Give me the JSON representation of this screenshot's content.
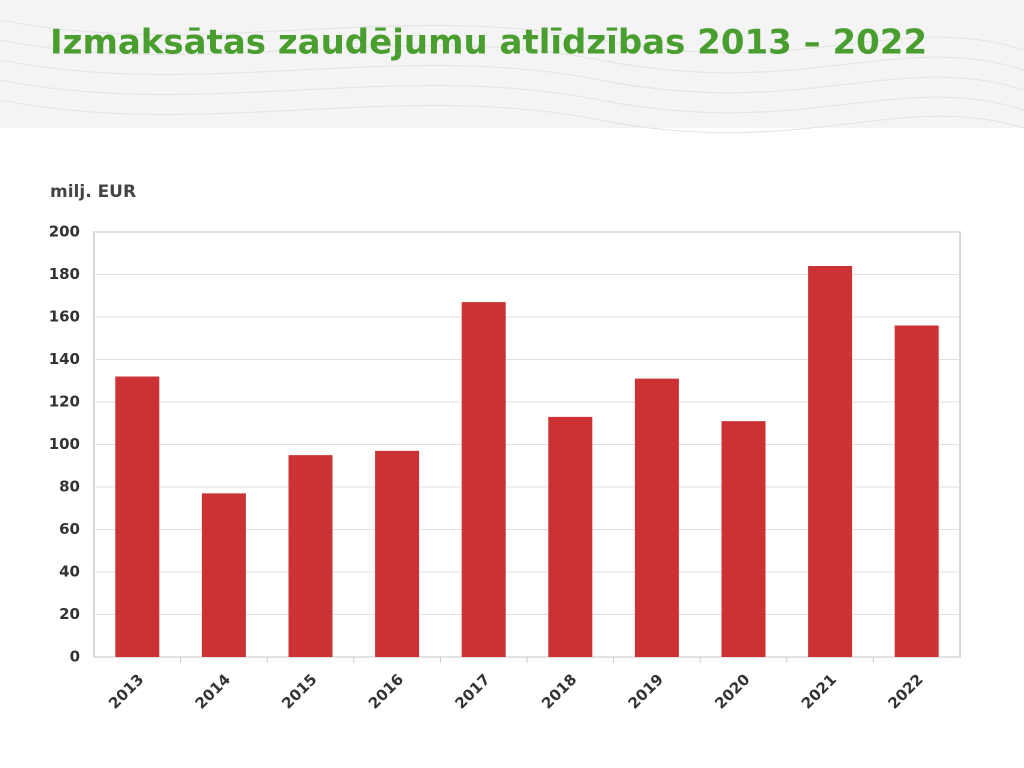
{
  "chart_data": {
    "type": "bar",
    "title": "Izmaksātas zaudējumu atlīdzības 2013 – 2022",
    "ylabel": "milj. EUR",
    "categories": [
      "2013",
      "2014",
      "2015",
      "2016",
      "2017",
      "2018",
      "2019",
      "2020",
      "2021",
      "2022"
    ],
    "values": [
      132,
      77,
      95,
      97,
      167,
      113,
      131,
      111,
      184,
      156
    ],
    "color": "#cc3234",
    "ylim": [
      0,
      200
    ],
    "yticks": [
      0,
      20,
      40,
      60,
      80,
      100,
      120,
      140,
      160,
      180,
      200
    ],
    "grid": true
  }
}
